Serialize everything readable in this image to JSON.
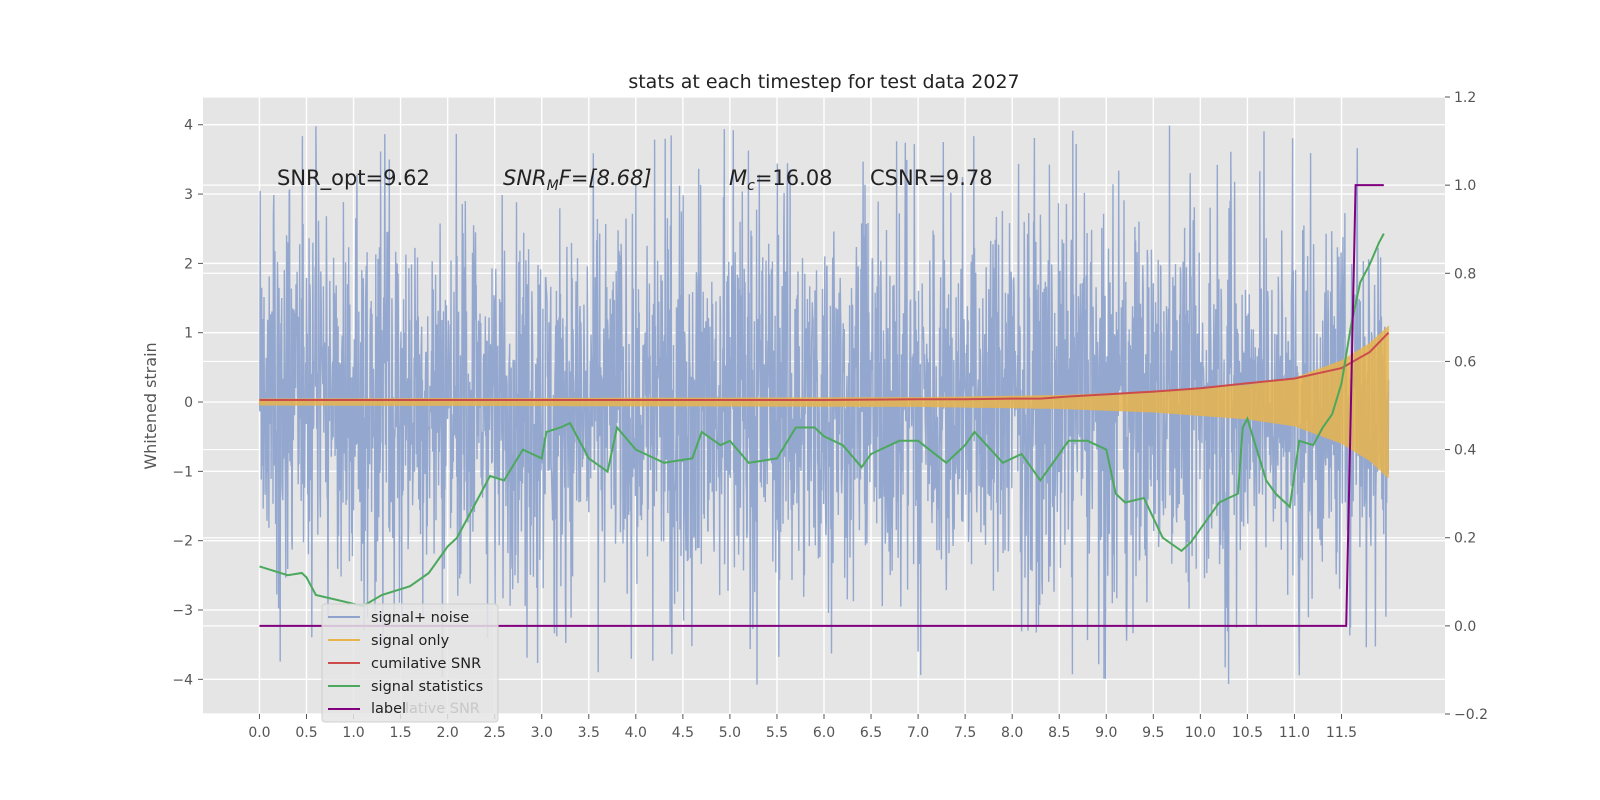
{
  "chart_data": {
    "type": "line",
    "title": "stats at each timestep for test data 2027",
    "ylabel": "Whitened strain",
    "ylabel_right": "",
    "xlim": [
      -0.6,
      12.6
    ],
    "ylim": [
      -4.5,
      4.4
    ],
    "ylim_right": [
      -0.2,
      1.2
    ],
    "x_ticks": [
      0.0,
      0.5,
      1.0,
      1.5,
      2.0,
      2.5,
      3.0,
      3.5,
      4.0,
      4.5,
      5.0,
      5.5,
      6.0,
      6.5,
      7.0,
      7.5,
      8.0,
      8.5,
      9.0,
      9.5,
      10.0,
      10.5,
      11.0,
      11.5
    ],
    "x_tick_labels": [
      "0.0",
      "0.5",
      "1.0",
      "1.5",
      "2.0",
      "2.5",
      "3.0",
      "3.5",
      "4.0",
      "4.5",
      "5.0",
      "5.5",
      "6.0",
      "6.5",
      "7.0",
      "7.5",
      "8.0",
      "8.5",
      "9.0",
      "9.5",
      "10.0",
      "10.5",
      "11.0",
      "11.5"
    ],
    "y_ticks": [
      -4,
      -3,
      -2,
      -1,
      0,
      1,
      2,
      3,
      4
    ],
    "y_tick_labels": [
      "−4",
      "−3",
      "−2",
      "−1",
      "0",
      "1",
      "2",
      "3",
      "4"
    ],
    "y_right_ticks": [
      -0.2,
      0.0,
      0.2,
      0.4,
      0.6,
      0.8,
      1.0,
      1.2
    ],
    "y_right_tick_labels": [
      "−0.2",
      "0.0",
      "0.2",
      "0.4",
      "0.6",
      "0.8",
      "1.0",
      "1.2"
    ],
    "grid": true,
    "legend_position": "lower-left",
    "annotations": [
      {
        "id": "snr-opt",
        "text": "SNR_opt=9.62"
      },
      {
        "id": "snr-mf",
        "main": "SNR",
        "sub": "M",
        "rest": "F=[8.68]"
      },
      {
        "id": "mc",
        "main": "M",
        "sub": "c",
        "rest": "=16.08"
      },
      {
        "id": "csnr",
        "text": "CSNR=9.78"
      }
    ],
    "series": [
      {
        "name": "signal+ noise",
        "axis": "left",
        "color": "#8fa3cc",
        "style": "dense-noise",
        "x_range": [
          0.0,
          12.0
        ],
        "typical_range": [
          -1.9,
          1.9
        ],
        "peak_range": [
          -4.1,
          4.0
        ]
      },
      {
        "name": "signal only",
        "axis": "left",
        "color": "#e8b44c",
        "style": "chirp",
        "x_range": [
          0.0,
          12.0
        ],
        "envelope": [
          [
            0.0,
            0.05
          ],
          [
            7.0,
            0.07
          ],
          [
            8.5,
            0.1
          ],
          [
            9.5,
            0.15
          ],
          [
            10.5,
            0.25
          ],
          [
            11.0,
            0.35
          ],
          [
            11.5,
            0.6
          ],
          [
            11.8,
            0.85
          ],
          [
            12.0,
            1.1
          ]
        ]
      },
      {
        "name": "cumilative SNR",
        "axis": "left",
        "color": "#cc4c4c",
        "x": [
          0.0,
          1.0,
          2.0,
          3.0,
          4.0,
          5.0,
          6.0,
          7.0,
          7.5,
          8.0,
          8.3,
          8.6,
          9.0,
          9.5,
          10.0,
          10.5,
          11.0,
          11.5,
          11.8,
          12.0
        ],
        "values": [
          0.03,
          0.03,
          0.03,
          0.03,
          0.03,
          0.03,
          0.03,
          0.04,
          0.04,
          0.05,
          0.05,
          0.08,
          0.11,
          0.15,
          0.2,
          0.27,
          0.34,
          0.49,
          0.72,
          1.0
        ]
      },
      {
        "name": "signal statistics",
        "axis": "right",
        "color": "#4ca85c",
        "x": [
          0.0,
          0.15,
          0.3,
          0.45,
          0.5,
          0.6,
          0.8,
          1.0,
          1.1,
          1.3,
          1.6,
          1.8,
          2.0,
          2.1,
          2.3,
          2.45,
          2.6,
          2.8,
          3.0,
          3.05,
          3.2,
          3.3,
          3.5,
          3.7,
          3.8,
          4.0,
          4.2,
          4.3,
          4.6,
          4.7,
          4.9,
          5.0,
          5.2,
          5.5,
          5.7,
          5.9,
          6.0,
          6.2,
          6.4,
          6.5,
          6.8,
          7.0,
          7.3,
          7.5,
          7.6,
          7.9,
          8.1,
          8.3,
          8.6,
          8.8,
          9.0,
          9.1,
          9.2,
          9.4,
          9.6,
          9.8,
          9.9,
          10.0,
          10.2,
          10.4,
          10.45,
          10.5,
          10.6,
          10.7,
          10.8,
          10.95,
          11.05,
          11.2,
          11.3,
          11.4,
          11.5,
          11.6,
          11.7,
          11.8,
          11.9,
          11.95
        ],
        "values": [
          0.135,
          0.125,
          0.115,
          0.12,
          0.11,
          0.07,
          0.06,
          0.05,
          0.045,
          0.07,
          0.09,
          0.12,
          0.18,
          0.2,
          0.28,
          0.34,
          0.33,
          0.4,
          0.38,
          0.44,
          0.45,
          0.46,
          0.38,
          0.35,
          0.45,
          0.4,
          0.38,
          0.37,
          0.38,
          0.44,
          0.41,
          0.42,
          0.37,
          0.38,
          0.45,
          0.45,
          0.43,
          0.41,
          0.36,
          0.39,
          0.42,
          0.42,
          0.37,
          0.41,
          0.44,
          0.37,
          0.39,
          0.33,
          0.42,
          0.42,
          0.4,
          0.3,
          0.28,
          0.29,
          0.2,
          0.17,
          0.19,
          0.22,
          0.28,
          0.3,
          0.45,
          0.47,
          0.4,
          0.33,
          0.3,
          0.27,
          0.42,
          0.41,
          0.45,
          0.48,
          0.55,
          0.68,
          0.78,
          0.82,
          0.87,
          0.89
        ]
      },
      {
        "name": "label",
        "axis": "right",
        "color": "#800080",
        "x": [
          0.0,
          11.55,
          11.65,
          11.95
        ],
        "values": [
          0.0,
          0.0,
          1.0,
          1.0
        ]
      }
    ],
    "legend_overlap_text": "lative SNR"
  }
}
